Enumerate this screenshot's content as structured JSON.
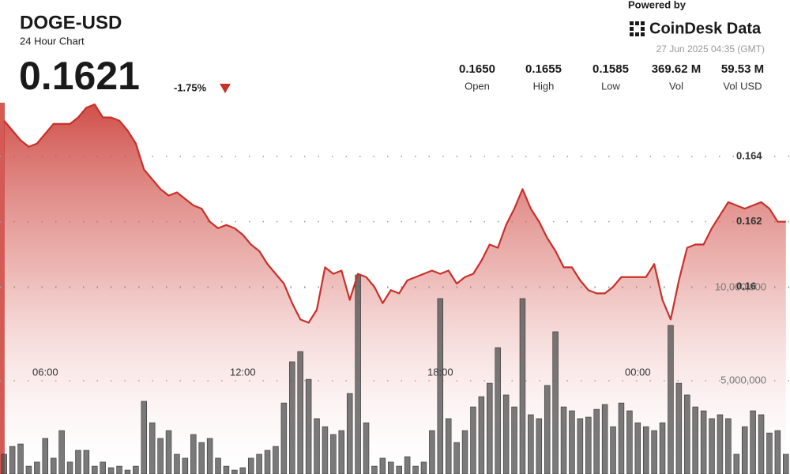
{
  "header": {
    "title": "DOGE-USD",
    "subtitle": "24 Hour Chart",
    "price": "0.1621",
    "change": "-1.75%",
    "powered_by": "Powered by",
    "brand": "CoinDesk Data",
    "timestamp": "27 Jun 2025 04:35 (GMT)"
  },
  "stats": [
    {
      "value": "0.1650",
      "label": "Open"
    },
    {
      "value": "0.1655",
      "label": "High"
    },
    {
      "value": "0.1585",
      "label": "Low"
    },
    {
      "value": "369.62 M",
      "label": "Vol"
    },
    {
      "value": "59.53 M",
      "label": "Vol USD"
    }
  ],
  "chart_data": {
    "type": "line",
    "categories": [
      null,
      null,
      null,
      null,
      null,
      "06:00",
      null,
      null,
      null,
      null,
      null,
      null,
      null,
      null,
      null,
      null,
      null,
      null,
      null,
      null,
      null,
      null,
      null,
      null,
      null,
      null,
      null,
      null,
      null,
      "12:00",
      null,
      null,
      null,
      null,
      null,
      null,
      null,
      null,
      null,
      null,
      null,
      null,
      null,
      null,
      null,
      null,
      null,
      null,
      null,
      null,
      null,
      null,
      null,
      "18:00",
      null,
      null,
      null,
      null,
      null,
      null,
      null,
      null,
      null,
      null,
      null,
      null,
      null,
      null,
      null,
      null,
      null,
      null,
      null,
      null,
      null,
      null,
      null,
      "00:00",
      null,
      null,
      null,
      null,
      null,
      null,
      null,
      null,
      null,
      null,
      null,
      null,
      null,
      null,
      null,
      null,
      null,
      null
    ],
    "series": [
      {
        "color": "#c8312a",
        "values": [
          0.1651,
          0.1648,
          0.1645,
          0.1643,
          0.1644,
          0.1647,
          0.165,
          0.165,
          0.165,
          0.1652,
          0.1655,
          0.1656,
          0.1652,
          0.1652,
          0.1651,
          0.1648,
          0.1644,
          0.1636,
          0.1633,
          0.163,
          0.1628,
          0.1629,
          0.1627,
          0.1625,
          0.1624,
          0.162,
          0.1618,
          0.1619,
          0.1618,
          0.1616,
          0.1613,
          0.1611,
          0.1607,
          0.1604,
          0.1601,
          0.1595,
          0.159,
          0.1589,
          0.1593,
          0.1606,
          0.1604,
          0.1605,
          0.1596,
          0.1604,
          0.1603,
          0.16,
          0.1595,
          0.1599,
          0.1598,
          0.1602,
          0.1603,
          0.1604,
          0.1605,
          0.1604,
          0.1605,
          0.1601,
          0.1603,
          0.1604,
          0.1608,
          0.1613,
          0.1612,
          0.1619,
          0.1624,
          0.163,
          0.1624,
          0.162,
          0.1615,
          0.1611,
          0.1606,
          0.1606,
          0.1602,
          0.1599,
          0.1598,
          0.1598,
          0.16,
          0.1603,
          0.1603,
          0.1603,
          0.1603,
          0.1607,
          0.1596,
          0.159,
          0.1602,
          0.1612,
          0.1613,
          0.1613,
          0.1618,
          0.1622,
          0.1626,
          0.1625,
          0.1624,
          0.1625,
          0.1626,
          0.1624,
          0.162,
          0.162
        ]
      },
      {
        "color": "#4d4d4d",
        "axis": "y2",
        "values": [
          1060000,
          1480000,
          1610000,
          420000,
          640000,
          1910000,
          850000,
          2330000,
          640000,
          1270000,
          1270000,
          420000,
          640000,
          340000,
          420000,
          210000,
          420000,
          3900000,
          2750000,
          1910000,
          2330000,
          1060000,
          850000,
          2120000,
          1690000,
          1910000,
          850000,
          420000,
          210000,
          340000,
          850000,
          1060000,
          1270000,
          1480000,
          3810000,
          6020000,
          6570000,
          5080000,
          2970000,
          2540000,
          2120000,
          2330000,
          4320000,
          10680000,
          2750000,
          420000,
          850000,
          640000,
          420000,
          930000,
          420000,
          640000,
          2330000,
          9410000,
          2970000,
          1690000,
          2330000,
          3600000,
          4150000,
          4870000,
          6780000,
          4240000,
          3600000,
          9410000,
          3180000,
          2970000,
          4750000,
          7630000,
          3600000,
          3390000,
          2970000,
          3050000,
          3470000,
          3730000,
          2540000,
          3810000,
          3390000,
          2750000,
          2540000,
          2330000,
          2750000,
          7970000,
          4870000,
          4240000,
          3600000,
          3390000,
          2970000,
          3180000,
          2970000,
          1060000,
          2540000,
          3390000,
          3180000,
          2200000,
          2330000,
          1060000
        ]
      }
    ],
    "ylim": [
      0.1545,
      0.1665
    ],
    "yticks": [
      0.164,
      0.162,
      0.16
    ],
    "y2lim": [
      0,
      21400000
    ],
    "y2ticks": [
      {
        "value": 10000000,
        "label": "10,000,000"
      },
      {
        "value": 5000000,
        "label": "5,000,000"
      }
    ],
    "grid": true
  }
}
